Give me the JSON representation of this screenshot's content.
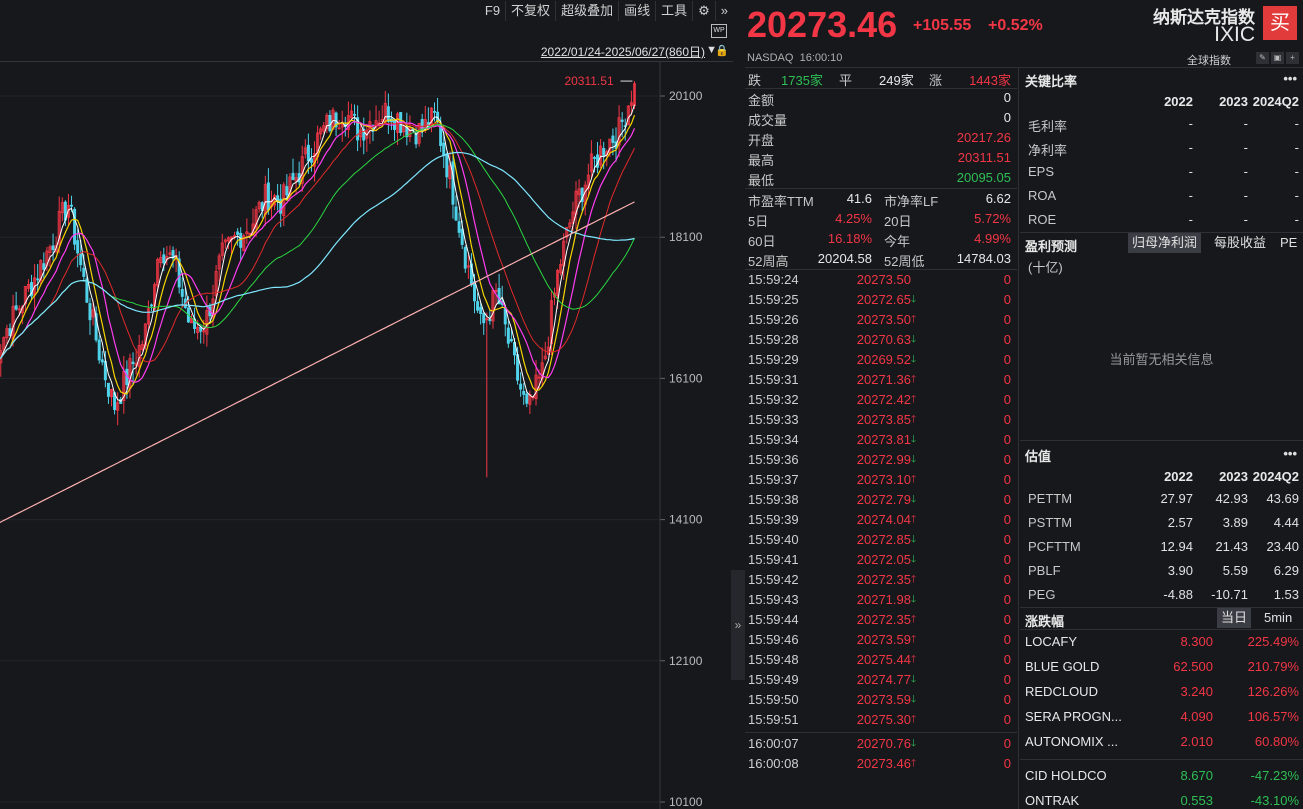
{
  "toolbar": {
    "items": [
      "F9",
      "不复权",
      "超级叠加",
      "画线",
      "工具"
    ],
    "settings_icon": "gear-icon",
    "expand_icon": "double-chevron-right-icon"
  },
  "chart": {
    "wp_badge": "WP",
    "date_range": "2022/01/24-2025/06/27(860日)",
    "high_marker": "20311.51",
    "y_ticks": [
      "20100",
      "18100",
      "16100",
      "14100",
      "12100",
      "10100"
    ]
  },
  "chart_data": {
    "type": "candlestick",
    "y_axis_ticks": [
      20100,
      18100,
      16100,
      14100,
      12100,
      10100
    ],
    "period": "2022/01/24-2025/06/27",
    "trading_days": 860,
    "marked_high": 20311.51,
    "close_series_approx": [
      16300,
      16800,
      17200,
      17600,
      18050,
      18600,
      17500,
      16500,
      15700,
      16200,
      16700,
      18000,
      17700,
      16800,
      16900,
      17800,
      18100,
      18300,
      18700,
      18600,
      19000,
      19400,
      19700,
      19900,
      19600,
      19800,
      19900,
      19700,
      19600,
      19800,
      18900,
      17800,
      16800,
      17300,
      16400,
      15600,
      16200,
      17600,
      18500,
      19000,
      19400,
      19600,
      20273.46
    ]
  },
  "quote": {
    "last": "20273.46",
    "change": "+105.55",
    "change_pct": "+0.52%",
    "exchange": "NASDAQ",
    "time": "16:00:10",
    "name": "纳斯达克指数",
    "code": "IXIC",
    "buy_label": "买",
    "global_link": "全球指数"
  },
  "breadth": {
    "down_label": "跌",
    "down": "1735家",
    "flat_label": "平",
    "flat": "249家",
    "up_label": "涨",
    "up": "1443家"
  },
  "stats": [
    {
      "label": "金额",
      "value": "0"
    },
    {
      "label": "成交量",
      "value": "0"
    },
    {
      "label": "开盘",
      "value": "20217.26"
    },
    {
      "label": "最高",
      "value": "20311.51"
    },
    {
      "label": "最低",
      "value": "20095.05"
    }
  ],
  "ratios": [
    {
      "l1": "市盈率TTM",
      "v1": "41.6",
      "l2": "市净率LF",
      "v2": "6.62"
    },
    {
      "l1": "5日",
      "v1": "4.25%",
      "l2": "20日",
      "v2": "5.72%"
    },
    {
      "l1": "60日",
      "v1": "16.18%",
      "l2": "今年",
      "v2": "4.99%"
    },
    {
      "l1": "52周高",
      "v1": "20204.58",
      "l2": "52周低",
      "v2": "14784.03"
    }
  ],
  "ticks": [
    {
      "t": "15:59:24",
      "p": "20273.50",
      "d": "",
      "v": "0"
    },
    {
      "t": "15:59:25",
      "p": "20272.65",
      "d": "down",
      "v": "0"
    },
    {
      "t": "15:59:26",
      "p": "20273.50",
      "d": "up",
      "v": "0"
    },
    {
      "t": "15:59:28",
      "p": "20270.63",
      "d": "down",
      "v": "0"
    },
    {
      "t": "15:59:29",
      "p": "20269.52",
      "d": "down",
      "v": "0"
    },
    {
      "t": "15:59:31",
      "p": "20271.36",
      "d": "up",
      "v": "0"
    },
    {
      "t": "15:59:32",
      "p": "20272.42",
      "d": "up",
      "v": "0"
    },
    {
      "t": "15:59:33",
      "p": "20273.85",
      "d": "up",
      "v": "0"
    },
    {
      "t": "15:59:34",
      "p": "20273.81",
      "d": "down",
      "v": "0"
    },
    {
      "t": "15:59:36",
      "p": "20272.99",
      "d": "down",
      "v": "0"
    },
    {
      "t": "15:59:37",
      "p": "20273.10",
      "d": "up",
      "v": "0"
    },
    {
      "t": "15:59:38",
      "p": "20272.79",
      "d": "down",
      "v": "0"
    },
    {
      "t": "15:59:39",
      "p": "20274.04",
      "d": "up",
      "v": "0"
    },
    {
      "t": "15:59:40",
      "p": "20272.85",
      "d": "down",
      "v": "0"
    },
    {
      "t": "15:59:41",
      "p": "20272.05",
      "d": "down",
      "v": "0"
    },
    {
      "t": "15:59:42",
      "p": "20272.35",
      "d": "up",
      "v": "0"
    },
    {
      "t": "15:59:43",
      "p": "20271.98",
      "d": "down",
      "v": "0"
    },
    {
      "t": "15:59:44",
      "p": "20272.35",
      "d": "up",
      "v": "0"
    },
    {
      "t": "15:59:46",
      "p": "20273.59",
      "d": "up",
      "v": "0"
    },
    {
      "t": "15:59:48",
      "p": "20275.44",
      "d": "up",
      "v": "0"
    },
    {
      "t": "15:59:49",
      "p": "20274.77",
      "d": "down",
      "v": "0"
    },
    {
      "t": "15:59:50",
      "p": "20273.59",
      "d": "down",
      "v": "0"
    },
    {
      "t": "15:59:51",
      "p": "20275.30",
      "d": "up",
      "v": "0"
    },
    {
      "t": "16:00:07",
      "p": "20270.76",
      "d": "down",
      "v": "0"
    },
    {
      "t": "16:00:08",
      "p": "20273.46",
      "d": "up",
      "v": "0"
    }
  ],
  "key_ratios": {
    "title": "关键比率",
    "more": "•••",
    "cols": [
      "2022",
      "2023",
      "2024Q2"
    ],
    "rows": [
      {
        "label": "毛利率",
        "vals": [
          "-",
          "-",
          "-"
        ]
      },
      {
        "label": "净利率",
        "vals": [
          "-",
          "-",
          "-"
        ]
      },
      {
        "label": "EPS",
        "vals": [
          "-",
          "-",
          "-"
        ]
      },
      {
        "label": "ROA",
        "vals": [
          "-",
          "-",
          "-"
        ]
      },
      {
        "label": "ROE",
        "vals": [
          "-",
          "-",
          "-"
        ]
      }
    ]
  },
  "forecast": {
    "title": "盈利预测",
    "tabs": [
      "归母净利润",
      "每股收益",
      "PE"
    ],
    "unit": "(十亿)",
    "empty_msg": "当前暂无相关信息"
  },
  "valuation": {
    "title": "估值",
    "more": "•••",
    "cols": [
      "2022",
      "2023",
      "2024Q2"
    ],
    "rows": [
      {
        "label": "PETTM",
        "vals": [
          "27.97",
          "42.93",
          "43.69"
        ]
      },
      {
        "label": "PSTTM",
        "vals": [
          "2.57",
          "3.89",
          "4.44"
        ]
      },
      {
        "label": "PCFTTM",
        "vals": [
          "12.94",
          "21.43",
          "23.40"
        ]
      },
      {
        "label": "PBLF",
        "vals": [
          "3.90",
          "5.59",
          "6.29"
        ]
      },
      {
        "label": "PEG",
        "vals": [
          "-4.88",
          "-10.71",
          "1.53"
        ]
      }
    ]
  },
  "movers": {
    "title": "涨跌幅",
    "tabs": [
      "当日",
      "5min"
    ],
    "gainers": [
      {
        "name": "LOCAFY",
        "price": "8.300",
        "pct": "225.49%"
      },
      {
        "name": "BLUE GOLD",
        "price": "62.500",
        "pct": "210.79%"
      },
      {
        "name": "REDCLOUD",
        "price": "3.240",
        "pct": "126.26%"
      },
      {
        "name": "SERA PROGN...",
        "price": "4.090",
        "pct": "106.57%"
      },
      {
        "name": "AUTONOMIX ...",
        "price": "2.010",
        "pct": "60.80%"
      }
    ],
    "losers": [
      {
        "name": "CID HOLDCO",
        "price": "8.670",
        "pct": "-47.23%"
      },
      {
        "name": "ONTRAK",
        "price": "0.553",
        "pct": "-43.10%"
      }
    ]
  }
}
